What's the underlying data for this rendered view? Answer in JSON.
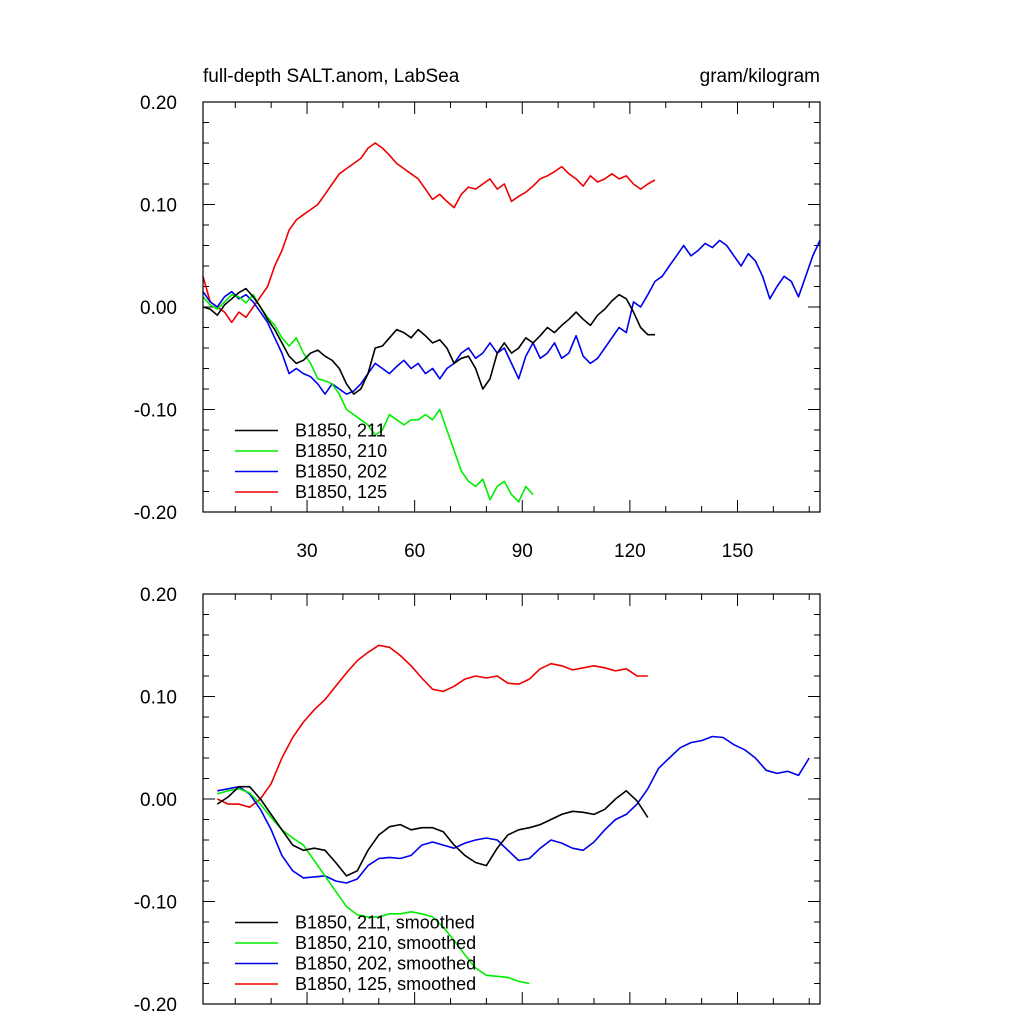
{
  "chart_data": [
    {
      "type": "line",
      "title": "full-depth SALT.anom, LabSea",
      "units": "gram/kilogram",
      "xlim": [
        1,
        173
      ],
      "ylim": [
        -0.2,
        0.2
      ],
      "xticks": [
        30,
        60,
        90,
        120,
        150
      ],
      "xtick_labels": [
        "30",
        "60",
        "90",
        "120",
        "150"
      ],
      "yticks": [
        -0.2,
        -0.1,
        0.0,
        0.1,
        0.2
      ],
      "ytick_labels": [
        "-0.20",
        "-0.10",
        "0.00",
        "0.10",
        "0.20"
      ],
      "legend_position": "bottom-left",
      "series": [
        {
          "name": "B1850, 211",
          "color": "#000000",
          "x": [
            1,
            3,
            5,
            7,
            9,
            11,
            13,
            15,
            17,
            19,
            21,
            23,
            25,
            27,
            29,
            31,
            33,
            35,
            37,
            39,
            41,
            43,
            45,
            47,
            49,
            51,
            53,
            55,
            57,
            59,
            61,
            63,
            65,
            67,
            69,
            71,
            73,
            75,
            77,
            79,
            81,
            83,
            85,
            87,
            89,
            91,
            93,
            95,
            97,
            99,
            101,
            103,
            105,
            107,
            109,
            111,
            113,
            115,
            117,
            119,
            121,
            123,
            125,
            127
          ],
          "y": [
            0.0,
            -0.002,
            -0.008,
            0.002,
            0.008,
            0.014,
            0.018,
            0.01,
            0.0,
            -0.012,
            -0.022,
            -0.035,
            -0.048,
            -0.055,
            -0.052,
            -0.045,
            -0.042,
            -0.048,
            -0.052,
            -0.06,
            -0.075,
            -0.085,
            -0.08,
            -0.065,
            -0.04,
            -0.038,
            -0.03,
            -0.022,
            -0.025,
            -0.03,
            -0.022,
            -0.028,
            -0.035,
            -0.032,
            -0.04,
            -0.055,
            -0.05,
            -0.048,
            -0.06,
            -0.08,
            -0.07,
            -0.045,
            -0.035,
            -0.045,
            -0.04,
            -0.03,
            -0.035,
            -0.028,
            -0.02,
            -0.025,
            -0.018,
            -0.012,
            -0.005,
            -0.012,
            -0.018,
            -0.008,
            -0.002,
            0.006,
            0.012,
            0.008,
            -0.005,
            -0.02,
            -0.027,
            -0.027
          ]
        },
        {
          "name": "B1850, 210",
          "color": "#00ee00",
          "x": [
            1,
            3,
            5,
            7,
            9,
            11,
            13,
            15,
            17,
            19,
            21,
            23,
            25,
            27,
            29,
            31,
            33,
            35,
            37,
            39,
            41,
            43,
            45,
            47,
            49,
            51,
            53,
            55,
            57,
            59,
            61,
            63,
            65,
            67,
            69,
            71,
            73,
            75,
            77,
            79,
            81,
            83,
            85,
            87,
            89,
            91,
            93
          ],
          "y": [
            0.01,
            0.002,
            -0.002,
            0.005,
            0.012,
            0.01,
            0.004,
            0.012,
            0.0,
            -0.01,
            -0.018,
            -0.03,
            -0.038,
            -0.03,
            -0.045,
            -0.055,
            -0.07,
            -0.072,
            -0.075,
            -0.085,
            -0.1,
            -0.105,
            -0.11,
            -0.115,
            -0.125,
            -0.12,
            -0.105,
            -0.11,
            -0.115,
            -0.11,
            -0.11,
            -0.105,
            -0.11,
            -0.1,
            -0.12,
            -0.14,
            -0.16,
            -0.17,
            -0.175,
            -0.168,
            -0.188,
            -0.175,
            -0.17,
            -0.183,
            -0.19,
            -0.175,
            -0.183
          ]
        },
        {
          "name": "B1850, 202",
          "color": "#0000ee",
          "x": [
            1,
            3,
            5,
            7,
            9,
            11,
            13,
            15,
            17,
            19,
            21,
            23,
            25,
            27,
            29,
            31,
            33,
            35,
            37,
            39,
            41,
            43,
            45,
            47,
            49,
            51,
            53,
            55,
            57,
            59,
            61,
            63,
            65,
            67,
            69,
            71,
            73,
            75,
            77,
            79,
            81,
            83,
            85,
            87,
            89,
            91,
            93,
            95,
            97,
            99,
            101,
            103,
            105,
            107,
            109,
            111,
            113,
            115,
            117,
            119,
            121,
            123,
            125,
            127,
            129,
            131,
            133,
            135,
            137,
            139,
            141,
            143,
            145,
            147,
            149,
            151,
            153,
            155,
            157,
            159,
            161,
            163,
            165,
            167,
            169,
            171,
            173
          ],
          "y": [
            0.015,
            0.005,
            0.0,
            0.01,
            0.015,
            0.008,
            0.012,
            0.005,
            -0.005,
            -0.015,
            -0.03,
            -0.045,
            -0.065,
            -0.06,
            -0.065,
            -0.068,
            -0.075,
            -0.085,
            -0.075,
            -0.08,
            -0.085,
            -0.082,
            -0.075,
            -0.065,
            -0.055,
            -0.06,
            -0.065,
            -0.058,
            -0.052,
            -0.06,
            -0.055,
            -0.065,
            -0.06,
            -0.07,
            -0.06,
            -0.055,
            -0.045,
            -0.04,
            -0.05,
            -0.045,
            -0.035,
            -0.045,
            -0.04,
            -0.055,
            -0.07,
            -0.048,
            -0.035,
            -0.05,
            -0.045,
            -0.035,
            -0.05,
            -0.045,
            -0.028,
            -0.048,
            -0.055,
            -0.05,
            -0.04,
            -0.03,
            -0.02,
            -0.025,
            0.005,
            0.0,
            0.012,
            0.025,
            0.03,
            0.04,
            0.05,
            0.06,
            0.05,
            0.055,
            0.062,
            0.058,
            0.065,
            0.06,
            0.05,
            0.04,
            0.052,
            0.045,
            0.03,
            0.008,
            0.02,
            0.03,
            0.025,
            0.01,
            0.03,
            0.05,
            0.065
          ]
        },
        {
          "name": "B1850, 125",
          "color": "#ee0000",
          "x": [
            1,
            3,
            5,
            7,
            9,
            11,
            13,
            15,
            17,
            19,
            21,
            23,
            25,
            27,
            29,
            31,
            33,
            35,
            37,
            39,
            41,
            43,
            45,
            47,
            49,
            51,
            53,
            55,
            57,
            59,
            61,
            63,
            65,
            67,
            69,
            71,
            73,
            75,
            77,
            79,
            81,
            83,
            85,
            87,
            89,
            91,
            93,
            95,
            97,
            99,
            101,
            103,
            105,
            107,
            109,
            111,
            113,
            115,
            117,
            119,
            121,
            123,
            125,
            127
          ],
          "y": [
            0.03,
            0.005,
            0.0,
            -0.005,
            -0.015,
            -0.005,
            -0.01,
            0.0,
            0.01,
            0.02,
            0.04,
            0.055,
            0.075,
            0.085,
            0.09,
            0.095,
            0.1,
            0.11,
            0.12,
            0.13,
            0.135,
            0.14,
            0.145,
            0.155,
            0.16,
            0.155,
            0.148,
            0.14,
            0.135,
            0.13,
            0.125,
            0.115,
            0.105,
            0.11,
            0.103,
            0.097,
            0.11,
            0.117,
            0.115,
            0.12,
            0.125,
            0.115,
            0.12,
            0.103,
            0.108,
            0.112,
            0.118,
            0.125,
            0.128,
            0.132,
            0.137,
            0.13,
            0.125,
            0.118,
            0.128,
            0.122,
            0.125,
            0.13,
            0.125,
            0.128,
            0.12,
            0.115,
            0.12,
            0.124
          ]
        }
      ]
    },
    {
      "type": "line",
      "title": "",
      "xlim": [
        1,
        173
      ],
      "ylim": [
        -0.2,
        0.2
      ],
      "xticks": [
        30,
        60,
        90,
        120,
        150
      ],
      "yticks": [
        -0.2,
        -0.1,
        0.0,
        0.1,
        0.2
      ],
      "ytick_labels": [
        "-0.20",
        "-0.10",
        "0.00",
        "0.10",
        "0.20"
      ],
      "legend_position": "bottom-left",
      "series": [
        {
          "name": "B1850, 211, smoothed",
          "color": "#000000",
          "x": [
            5,
            8,
            11,
            14,
            17,
            20,
            23,
            26,
            29,
            32,
            35,
            38,
            41,
            44,
            47,
            50,
            53,
            56,
            59,
            62,
            65,
            68,
            71,
            74,
            77,
            80,
            83,
            86,
            89,
            92,
            95,
            98,
            101,
            104,
            107,
            110,
            113,
            116,
            119,
            122,
            125
          ],
          "y": [
            -0.005,
            0.002,
            0.012,
            0.012,
            0.0,
            -0.015,
            -0.03,
            -0.045,
            -0.05,
            -0.048,
            -0.05,
            -0.062,
            -0.075,
            -0.07,
            -0.05,
            -0.035,
            -0.027,
            -0.025,
            -0.03,
            -0.028,
            -0.028,
            -0.032,
            -0.045,
            -0.055,
            -0.062,
            -0.065,
            -0.048,
            -0.035,
            -0.03,
            -0.028,
            -0.025,
            -0.02,
            -0.015,
            -0.012,
            -0.013,
            -0.015,
            -0.01,
            0.0,
            0.008,
            -0.002,
            -0.018
          ]
        },
        {
          "name": "B1850, 210, smoothed",
          "color": "#00ee00",
          "x": [
            5,
            8,
            11,
            14,
            17,
            20,
            23,
            26,
            29,
            32,
            35,
            38,
            41,
            44,
            47,
            50,
            53,
            56,
            59,
            62,
            65,
            68,
            71,
            74,
            77,
            80,
            83,
            86,
            89,
            92
          ],
          "y": [
            0.005,
            0.008,
            0.01,
            0.006,
            -0.005,
            -0.018,
            -0.03,
            -0.038,
            -0.045,
            -0.06,
            -0.075,
            -0.09,
            -0.105,
            -0.113,
            -0.115,
            -0.115,
            -0.112,
            -0.112,
            -0.11,
            -0.112,
            -0.115,
            -0.125,
            -0.138,
            -0.152,
            -0.165,
            -0.172,
            -0.173,
            -0.174,
            -0.178,
            -0.18
          ]
        },
        {
          "name": "B1850, 202, smoothed",
          "color": "#0000ee",
          "x": [
            5,
            8,
            11,
            14,
            17,
            20,
            23,
            26,
            29,
            32,
            35,
            38,
            41,
            44,
            47,
            50,
            53,
            56,
            59,
            62,
            65,
            68,
            71,
            74,
            77,
            80,
            83,
            86,
            89,
            92,
            95,
            98,
            101,
            104,
            107,
            110,
            113,
            116,
            119,
            122,
            125,
            128,
            131,
            134,
            137,
            140,
            143,
            146,
            149,
            152,
            155,
            158,
            161,
            164,
            167,
            170
          ],
          "y": [
            0.008,
            0.01,
            0.012,
            0.005,
            -0.01,
            -0.03,
            -0.055,
            -0.07,
            -0.077,
            -0.076,
            -0.075,
            -0.08,
            -0.082,
            -0.078,
            -0.065,
            -0.058,
            -0.057,
            -0.058,
            -0.055,
            -0.045,
            -0.042,
            -0.045,
            -0.048,
            -0.043,
            -0.04,
            -0.038,
            -0.04,
            -0.05,
            -0.06,
            -0.058,
            -0.048,
            -0.04,
            -0.043,
            -0.048,
            -0.05,
            -0.042,
            -0.03,
            -0.02,
            -0.015,
            -0.005,
            0.01,
            0.03,
            0.04,
            0.05,
            0.055,
            0.057,
            0.061,
            0.06,
            0.053,
            0.048,
            0.04,
            0.028,
            0.025,
            0.027,
            0.023,
            0.04
          ]
        },
        {
          "name": "B1850, 125, smoothed",
          "color": "#ee0000",
          "x": [
            5,
            8,
            11,
            14,
            17,
            20,
            23,
            26,
            29,
            32,
            35,
            38,
            41,
            44,
            47,
            50,
            53,
            56,
            59,
            62,
            65,
            68,
            71,
            74,
            77,
            80,
            83,
            86,
            89,
            92,
            95,
            98,
            101,
            104,
            107,
            110,
            113,
            116,
            119,
            122,
            125
          ],
          "y": [
            0.0,
            -0.005,
            -0.005,
            -0.008,
            0.0,
            0.015,
            0.04,
            0.06,
            0.075,
            0.087,
            0.097,
            0.11,
            0.123,
            0.135,
            0.143,
            0.15,
            0.148,
            0.14,
            0.13,
            0.118,
            0.107,
            0.105,
            0.11,
            0.117,
            0.12,
            0.118,
            0.12,
            0.113,
            0.112,
            0.117,
            0.127,
            0.132,
            0.13,
            0.126,
            0.128,
            0.13,
            0.128,
            0.125,
            0.127,
            0.12,
            0.12
          ]
        }
      ]
    }
  ]
}
